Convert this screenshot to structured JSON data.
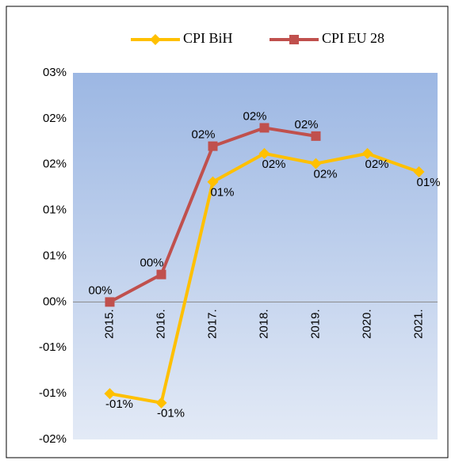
{
  "chart_data": {
    "type": "line",
    "categories": [
      "2015.",
      "2016.",
      "2017.",
      "2018.",
      "2019.",
      "2020.",
      "2021."
    ],
    "series": [
      {
        "name": "CPI BiH",
        "color": "#FFC000",
        "marker": "diamond",
        "values": [
          -1.0,
          -1.1,
          1.31,
          1.62,
          1.51,
          1.62,
          1.42
        ],
        "value_labels": [
          "-01%",
          "-01%",
          "01%",
          "02%",
          "02%",
          "02%",
          "01%"
        ]
      },
      {
        "name": "CPI EU 28",
        "color": "#C0504D",
        "marker": "square",
        "values": [
          0,
          0.3,
          1.7,
          1.9,
          1.81,
          null,
          null
        ],
        "value_labels": [
          "00%",
          "00%",
          "02%",
          "02%",
          "02%",
          null,
          null
        ]
      }
    ],
    "ylim": [
      -1.5,
      2.5
    ],
    "yticks": [
      {
        "value": 2.5,
        "label": "03%"
      },
      {
        "value": 2.0,
        "label": "02%"
      },
      {
        "value": 1.5,
        "label": "02%"
      },
      {
        "value": 1.0,
        "label": "01%"
      },
      {
        "value": 0.5,
        "label": "01%"
      },
      {
        "value": 0,
        "label": "00%"
      },
      {
        "value": -0.5,
        "label": "-01%"
      },
      {
        "value": -1.0,
        "label": "-01%"
      },
      {
        "value": -1.5,
        "label": "-02%"
      }
    ],
    "legend": "top"
  }
}
